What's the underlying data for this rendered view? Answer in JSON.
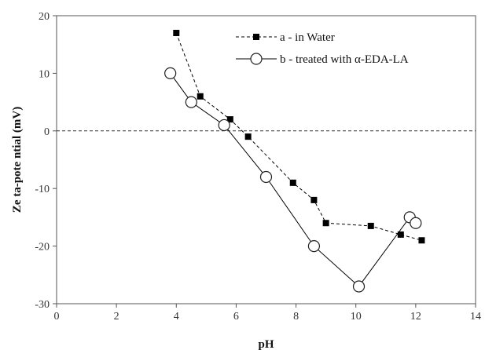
{
  "chart_data": {
    "type": "line",
    "title": "",
    "xlabel": "pH",
    "ylabel": "Ze ta-pote ntial (mV)",
    "xlim": [
      0,
      14
    ],
    "ylim": [
      -30,
      20
    ],
    "xticks": [
      0,
      2,
      4,
      6,
      8,
      10,
      12,
      14
    ],
    "yticks": [
      20,
      10,
      0,
      -10,
      -20,
      -30
    ],
    "grid": false,
    "reference_line_y": 0,
    "legend_position": "top-right",
    "series": [
      {
        "name": "a - in Water",
        "marker": "filled-square",
        "line_style": "dashed",
        "color": "#000000",
        "x": [
          4.0,
          4.8,
          5.8,
          6.4,
          7.9,
          8.6,
          9.0,
          10.5,
          11.5,
          12.2
        ],
        "y": [
          17,
          6,
          2,
          -1,
          -9,
          -12,
          -16,
          -16.5,
          -18,
          -19
        ]
      },
      {
        "name": "b - treated with α-EDA-LA",
        "marker": "open-circle",
        "line_style": "solid",
        "color": "#000000",
        "x": [
          3.8,
          4.5,
          5.6,
          7.0,
          8.6,
          10.1,
          11.8,
          12.0
        ],
        "y": [
          10,
          5,
          1,
          -8,
          -20,
          -27,
          -15,
          -16
        ]
      }
    ]
  }
}
